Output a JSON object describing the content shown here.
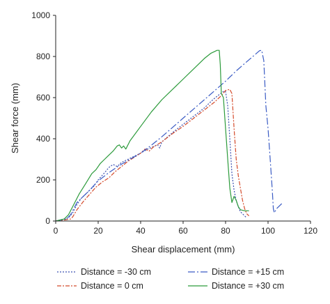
{
  "chart_data": {
    "type": "line",
    "xlabel": "Shear displacement (mm)",
    "ylabel": "Shear force (mm)",
    "xlim": [
      0,
      120
    ],
    "ylim": [
      0,
      1000
    ],
    "xticks": [
      0,
      20,
      40,
      60,
      80,
      100,
      120
    ],
    "yticks": [
      0,
      200,
      400,
      600,
      800,
      1000
    ],
    "grid": false,
    "legend_position": "bottom",
    "series": [
      {
        "name": "Distance = -30 cm",
        "color": "#3a4fb0",
        "dash": "2,2",
        "points": [
          [
            0,
            0
          ],
          [
            6,
            15
          ],
          [
            8,
            40
          ],
          [
            10,
            80
          ],
          [
            12,
            110
          ],
          [
            15,
            140
          ],
          [
            18,
            170
          ],
          [
            20,
            200
          ],
          [
            23,
            235
          ],
          [
            25,
            260
          ],
          [
            27,
            275
          ],
          [
            29,
            265
          ],
          [
            31,
            285
          ],
          [
            34,
            300
          ],
          [
            37,
            315
          ],
          [
            40,
            330
          ],
          [
            43,
            348
          ],
          [
            46,
            362
          ],
          [
            48,
            370
          ],
          [
            49,
            355
          ],
          [
            50,
            385
          ],
          [
            55,
            430
          ],
          [
            60,
            470
          ],
          [
            65,
            510
          ],
          [
            70,
            550
          ],
          [
            74,
            590
          ],
          [
            77,
            615
          ],
          [
            79,
            630
          ],
          [
            80,
            630
          ],
          [
            81,
            560
          ],
          [
            82,
            400
          ],
          [
            83,
            230
          ],
          [
            84,
            150
          ],
          [
            85,
            100
          ],
          [
            86,
            70
          ],
          [
            87,
            45
          ],
          [
            88,
            35
          ],
          [
            89,
            25
          ],
          [
            90,
            15
          ]
        ]
      },
      {
        "name": "Distance = 0 cm",
        "color": "#d44a2a",
        "dash": "6,2,2,2",
        "points": [
          [
            0,
            0
          ],
          [
            4,
            5
          ],
          [
            7,
            10
          ],
          [
            8,
            20
          ],
          [
            10,
            55
          ],
          [
            13,
            95
          ],
          [
            16,
            130
          ],
          [
            19,
            165
          ],
          [
            22,
            190
          ],
          [
            25,
            210
          ],
          [
            28,
            240
          ],
          [
            31,
            265
          ],
          [
            34,
            290
          ],
          [
            37,
            310
          ],
          [
            40,
            330
          ],
          [
            42,
            350
          ],
          [
            44,
            340
          ],
          [
            46,
            360
          ],
          [
            50,
            385
          ],
          [
            55,
            425
          ],
          [
            60,
            460
          ],
          [
            65,
            500
          ],
          [
            70,
            540
          ],
          [
            75,
            580
          ],
          [
            78,
            610
          ],
          [
            80,
            635
          ],
          [
            82,
            640
          ],
          [
            83,
            620
          ],
          [
            84,
            450
          ],
          [
            85,
            300
          ],
          [
            86,
            220
          ],
          [
            87,
            160
          ],
          [
            88,
            100
          ],
          [
            89,
            60
          ],
          [
            90,
            35
          ],
          [
            91,
            25
          ]
        ]
      },
      {
        "name": "Distance = +15 cm",
        "color": "#3a5bc4",
        "dash": "10,3,2,3",
        "points": [
          [
            0,
            0
          ],
          [
            5,
            10
          ],
          [
            7,
            30
          ],
          [
            10,
            90
          ],
          [
            15,
            140
          ],
          [
            20,
            195
          ],
          [
            25,
            235
          ],
          [
            30,
            270
          ],
          [
            35,
            300
          ],
          [
            40,
            330
          ],
          [
            45,
            368
          ],
          [
            50,
            410
          ],
          [
            55,
            455
          ],
          [
            60,
            500
          ],
          [
            65,
            545
          ],
          [
            70,
            590
          ],
          [
            75,
            635
          ],
          [
            80,
            680
          ],
          [
            85,
            730
          ],
          [
            90,
            775
          ],
          [
            94,
            810
          ],
          [
            96,
            828
          ],
          [
            97,
            830
          ],
          [
            98,
            780
          ],
          [
            99,
            560
          ],
          [
            100,
            450
          ],
          [
            101,
            300
          ],
          [
            102,
            150
          ],
          [
            102.5,
            60
          ],
          [
            103,
            40
          ],
          [
            104,
            60
          ],
          [
            106,
            80
          ],
          [
            107,
            90
          ]
        ]
      },
      {
        "name": "Distance = +30 cm",
        "color": "#2b9a3a",
        "dash": "",
        "points": [
          [
            0,
            0
          ],
          [
            4,
            10
          ],
          [
            6,
            30
          ],
          [
            8,
            70
          ],
          [
            11,
            130
          ],
          [
            14,
            180
          ],
          [
            17,
            230
          ],
          [
            19,
            250
          ],
          [
            21,
            280
          ],
          [
            23,
            300
          ],
          [
            25,
            320
          ],
          [
            27,
            340
          ],
          [
            29,
            365
          ],
          [
            30,
            370
          ],
          [
            31,
            355
          ],
          [
            32,
            365
          ],
          [
            33,
            350
          ],
          [
            35,
            390
          ],
          [
            40,
            460
          ],
          [
            45,
            530
          ],
          [
            50,
            590
          ],
          [
            55,
            640
          ],
          [
            60,
            690
          ],
          [
            65,
            740
          ],
          [
            70,
            790
          ],
          [
            73,
            815
          ],
          [
            76,
            830
          ],
          [
            77,
            830
          ],
          [
            77.5,
            760
          ],
          [
            78,
            620
          ],
          [
            79,
            600
          ],
          [
            80,
            450
          ],
          [
            81,
            300
          ],
          [
            82,
            160
          ],
          [
            83,
            90
          ],
          [
            84,
            120
          ],
          [
            85,
            100
          ],
          [
            86,
            70
          ],
          [
            87,
            55
          ],
          [
            89,
            50
          ],
          [
            91,
            50
          ]
        ]
      }
    ]
  }
}
